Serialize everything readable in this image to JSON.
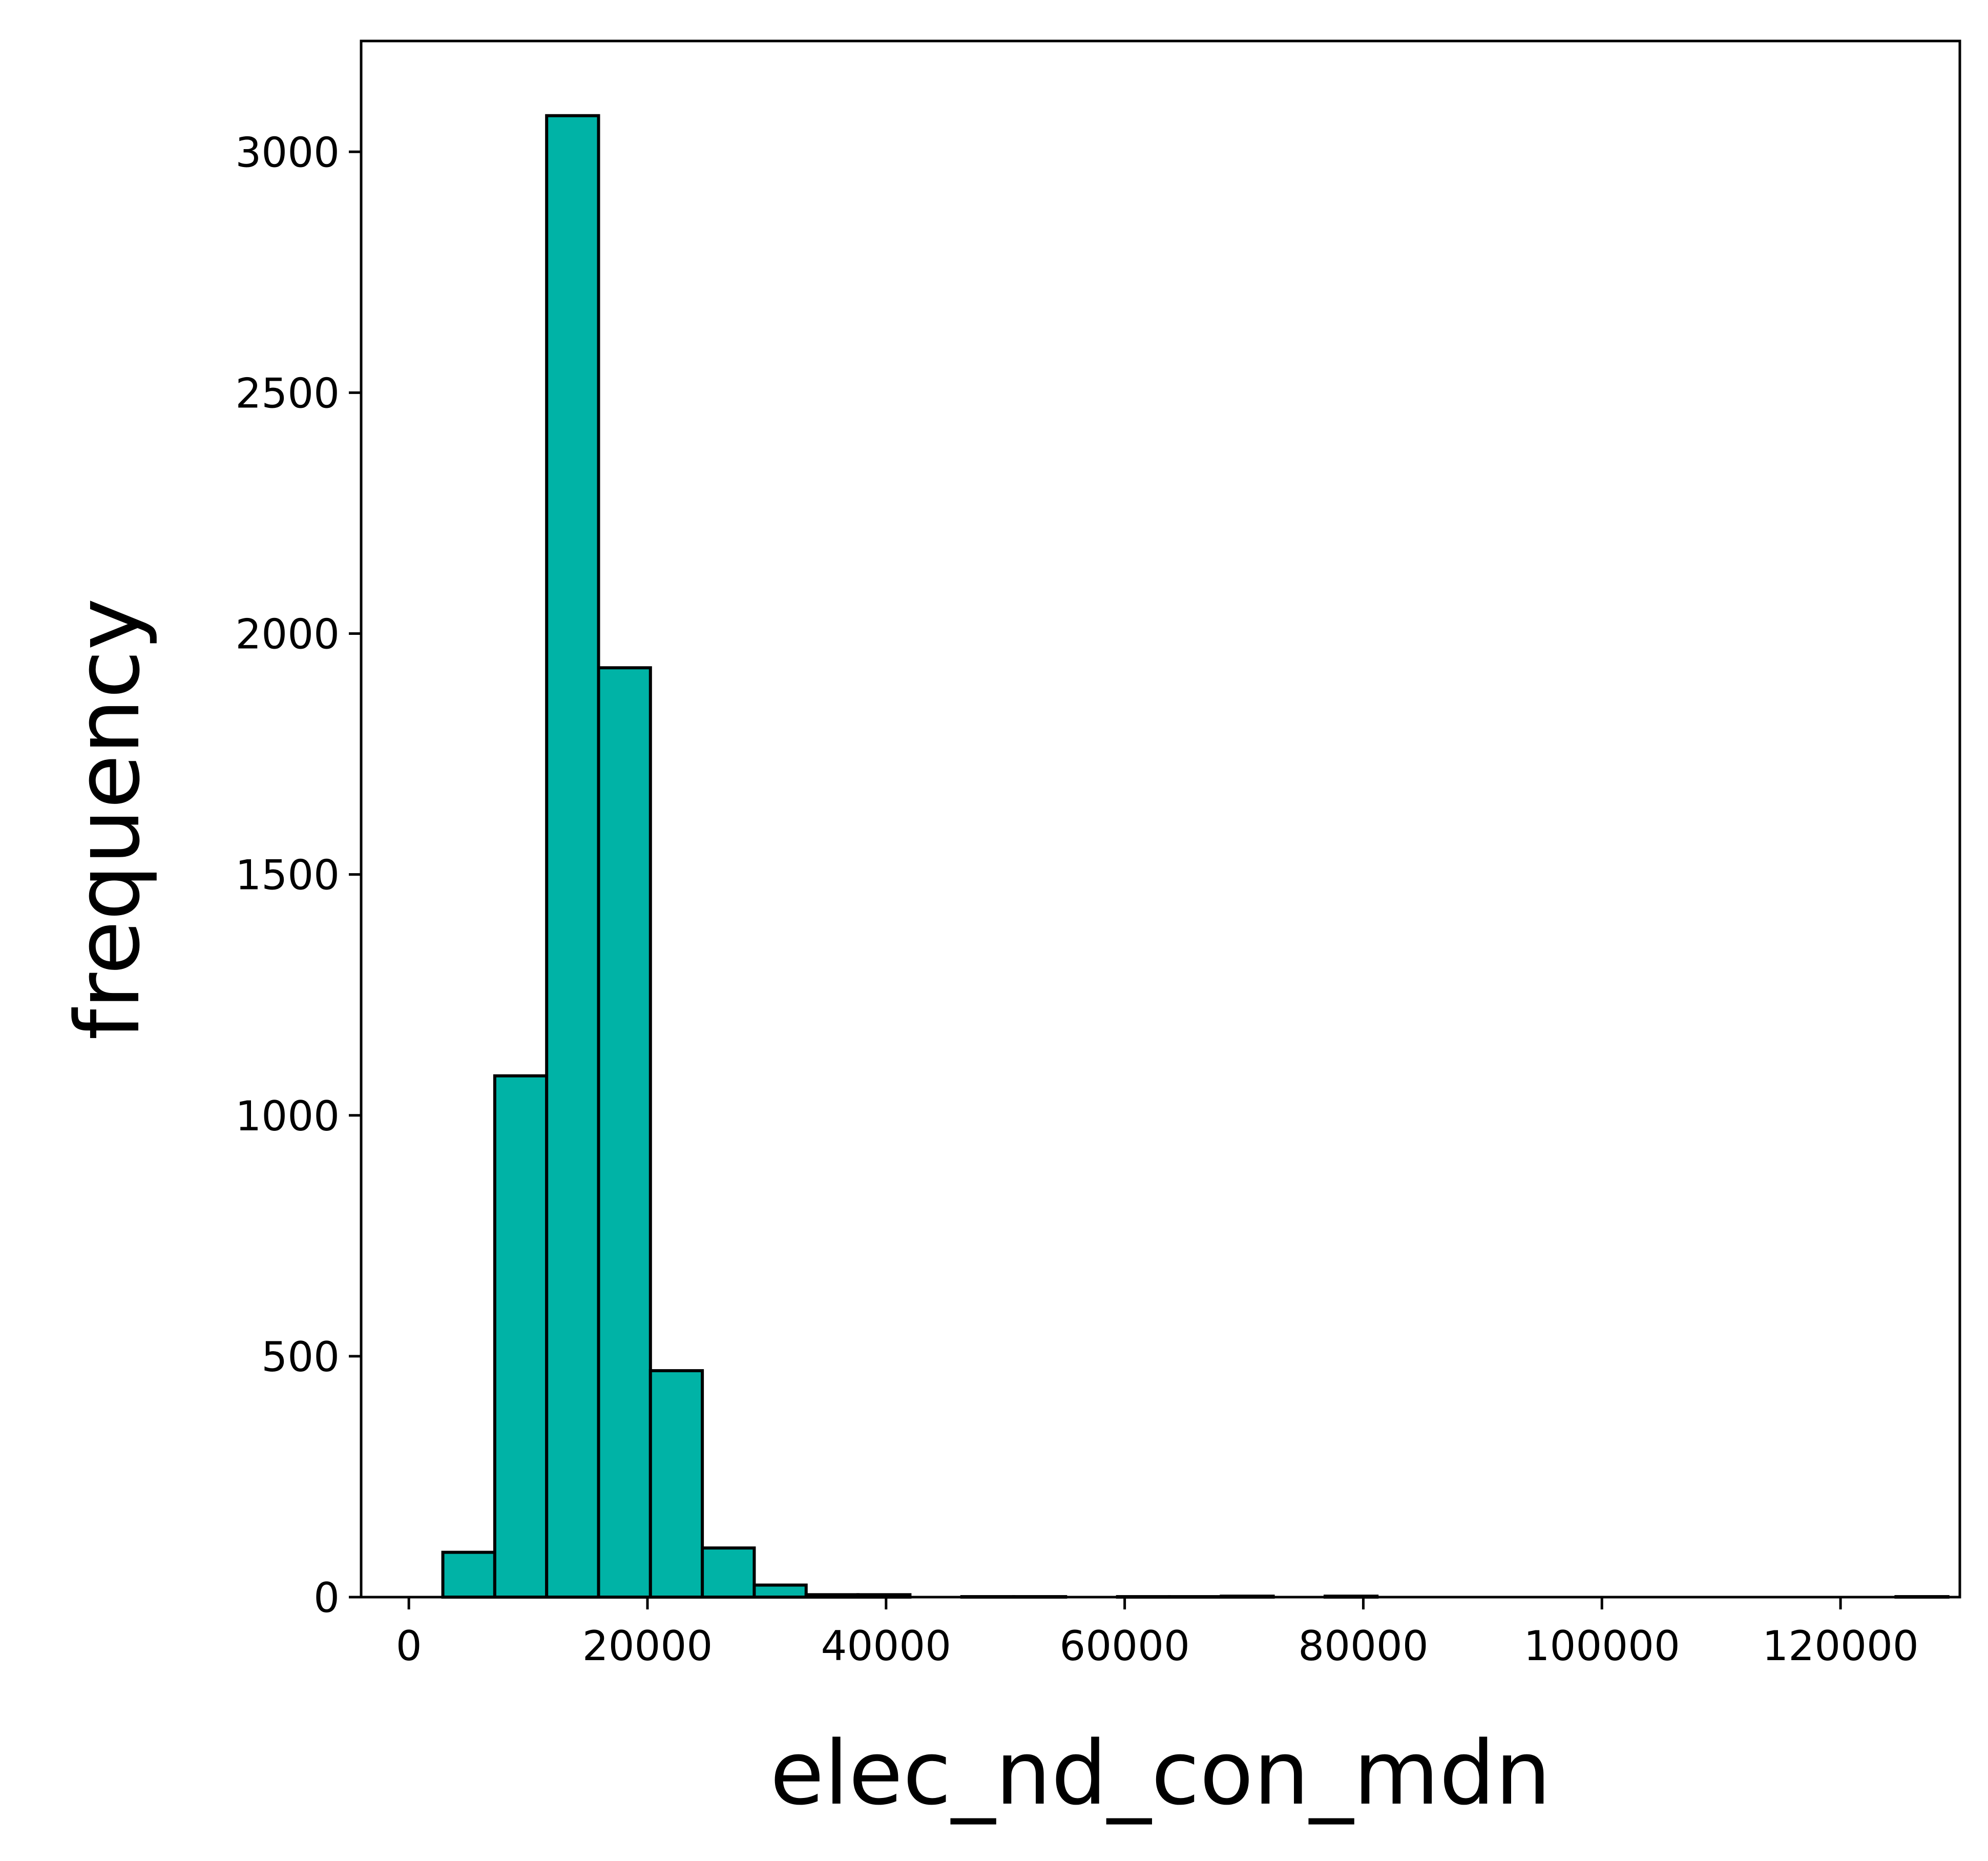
{
  "chart_data": {
    "type": "bar",
    "title": "",
    "xlabel": "elec_nd_con_mdn",
    "ylabel": "frequency",
    "xlim": [
      -4000,
      130000
    ],
    "ylim": [
      0,
      3230
    ],
    "x_ticks": [
      0,
      20000,
      40000,
      60000,
      80000,
      100000,
      120000
    ],
    "x_tick_labels": [
      "0",
      "20000",
      "40000",
      "60000",
      "80000",
      "100000",
      "120000"
    ],
    "y_ticks": [
      0,
      500,
      1000,
      1500,
      2000,
      2500,
      3000
    ],
    "y_tick_labels": [
      "0",
      "500",
      "1000",
      "1500",
      "2000",
      "2500",
      "3000"
    ],
    "grid": false,
    "bar_color": "#00b3a6",
    "edge_color": "#000000",
    "bins": [
      {
        "x0": 2850,
        "x1": 7200,
        "count": 93
      },
      {
        "x0": 7200,
        "x1": 11550,
        "count": 1082
      },
      {
        "x0": 11550,
        "x1": 15900,
        "count": 3075
      },
      {
        "x0": 15900,
        "x1": 20250,
        "count": 1929
      },
      {
        "x0": 20250,
        "x1": 24600,
        "count": 470
      },
      {
        "x0": 24600,
        "x1": 28950,
        "count": 102
      },
      {
        "x0": 28950,
        "x1": 33300,
        "count": 25
      },
      {
        "x0": 33300,
        "x1": 37650,
        "count": 5
      },
      {
        "x0": 37650,
        "x1": 42000,
        "count": 5
      },
      {
        "x0": 42000,
        "x1": 46350,
        "count": 0
      },
      {
        "x0": 46350,
        "x1": 50700,
        "count": 1
      },
      {
        "x0": 50700,
        "x1": 55050,
        "count": 1
      },
      {
        "x0": 55050,
        "x1": 59400,
        "count": 0
      },
      {
        "x0": 59400,
        "x1": 63750,
        "count": 1
      },
      {
        "x0": 63750,
        "x1": 68100,
        "count": 1
      },
      {
        "x0": 68100,
        "x1": 72450,
        "count": 2
      },
      {
        "x0": 72450,
        "x1": 76800,
        "count": 0
      },
      {
        "x0": 76800,
        "x1": 81150,
        "count": 2
      },
      {
        "x0": 81150,
        "x1": 85500,
        "count": 0
      },
      {
        "x0": 85500,
        "x1": 89850,
        "count": 0
      },
      {
        "x0": 89850,
        "x1": 94200,
        "count": 0
      },
      {
        "x0": 94200,
        "x1": 98550,
        "count": 0
      },
      {
        "x0": 98550,
        "x1": 102900,
        "count": 0
      },
      {
        "x0": 102900,
        "x1": 107250,
        "count": 0
      },
      {
        "x0": 107250,
        "x1": 111600,
        "count": 0
      },
      {
        "x0": 111600,
        "x1": 115950,
        "count": 0
      },
      {
        "x0": 115950,
        "x1": 120300,
        "count": 0
      },
      {
        "x0": 120300,
        "x1": 124650,
        "count": 0
      },
      {
        "x0": 124650,
        "x1": 129000,
        "count": 1
      }
    ]
  }
}
